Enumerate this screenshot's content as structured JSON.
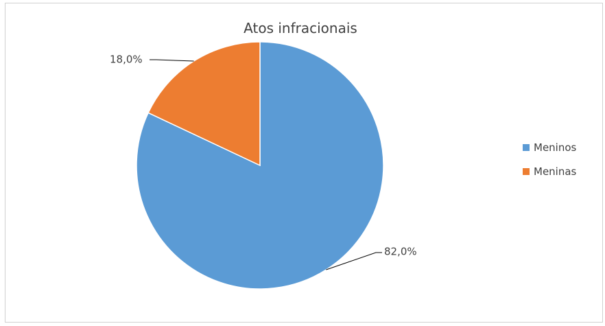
{
  "chart_data": {
    "type": "pie",
    "title": "Atos infracionais",
    "categories": [
      "Meninos",
      "Meninas"
    ],
    "values": [
      82.0,
      18.0
    ],
    "data_labels": [
      "82,0%",
      "18,0%"
    ],
    "colors": [
      "#5B9BD5",
      "#ED7D31"
    ],
    "legend_position": "right"
  },
  "legend": {
    "items": [
      {
        "label": "Meninos",
        "color": "#5B9BD5"
      },
      {
        "label": "Meninas",
        "color": "#ED7D31"
      }
    ]
  }
}
